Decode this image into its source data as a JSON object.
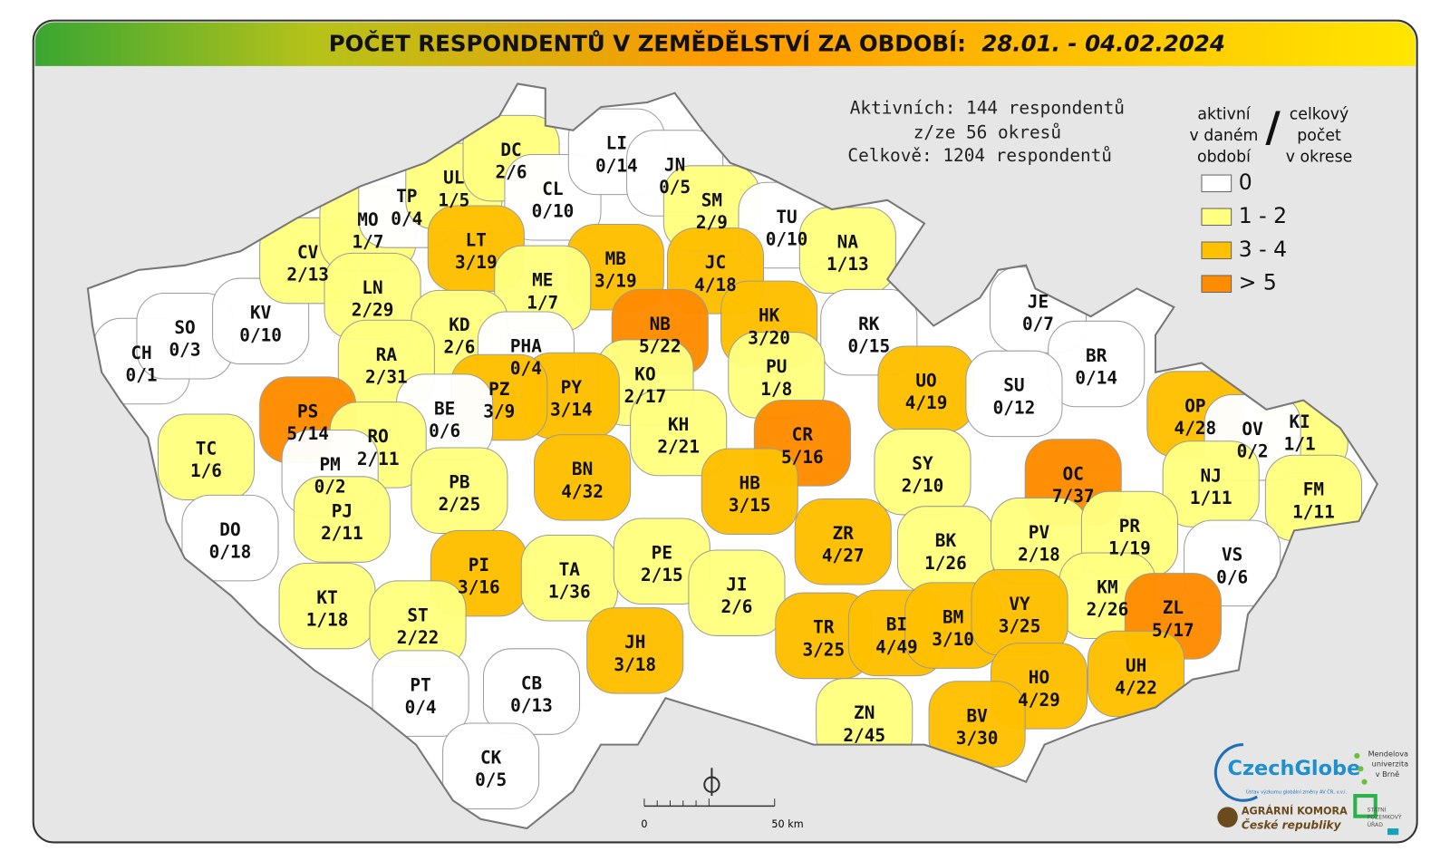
{
  "header": {
    "title": "POČET RESPONDENTŮ V ZEMĚDĚLSTVÍ ZA OBDOBÍ:",
    "period": "28.01. - 04.02.2024"
  },
  "summary": [
    "Aktivních: 144 respondentů",
    "z/ze 56 okresů",
    "Celkově: 1204 respondentů"
  ],
  "legend": {
    "left_heading": [
      "aktivní",
      "v daném",
      "období"
    ],
    "separator": "/",
    "right_heading": [
      "celkový",
      "počet",
      "v okrese"
    ],
    "classes": [
      {
        "label": "0",
        "color": "#ffffff"
      },
      {
        "label": "1 - 2",
        "color": "#ffff80"
      },
      {
        "label": "3 - 4",
        "color": "#ffc000"
      },
      {
        "label": "> 5",
        "color": "#ff8c00"
      }
    ]
  },
  "scale_bar": {
    "start": "0",
    "end": "50 km"
  },
  "logos": {
    "czechglobe": "CzechGlobe",
    "czechglobe_sub": "Ústav výzkumu globální změny AV ČR, v.v.i.",
    "mendelu": [
      "Mendelova",
      "univerzita",
      "v Brně"
    ],
    "agrarni": [
      "AGRÁRNÍ KOMORA",
      "České republiky"
    ],
    "spu": [
      "STÁTNÍ",
      "POZEMKOVÝ",
      "ÚŘAD"
    ]
  },
  "districts": [
    {
      "code": "CH",
      "count": "0/1",
      "color": "#ffffff"
    },
    {
      "code": "SO",
      "count": "0/3",
      "color": "#ffffff"
    },
    {
      "code": "KV",
      "count": "0/10",
      "color": "#ffffff"
    },
    {
      "code": "CV",
      "count": "2/13",
      "color": "#ffff80"
    },
    {
      "code": "MO",
      "count": "1/7",
      "color": "#ffff80"
    },
    {
      "code": "TP",
      "count": "0/4",
      "color": "#ffffff"
    },
    {
      "code": "UL",
      "count": "1/5",
      "color": "#ffff80"
    },
    {
      "code": "DC",
      "count": "2/6",
      "color": "#ffff80"
    },
    {
      "code": "CL",
      "count": "0/10",
      "color": "#ffffff"
    },
    {
      "code": "LI",
      "count": "0/14",
      "color": "#ffffff"
    },
    {
      "code": "JN",
      "count": "0/5",
      "color": "#ffffff"
    },
    {
      "code": "SM",
      "count": "2/9",
      "color": "#ffff80"
    },
    {
      "code": "TU",
      "count": "0/10",
      "color": "#ffffff"
    },
    {
      "code": "NA",
      "count": "1/13",
      "color": "#ffff80"
    },
    {
      "code": "LT",
      "count": "3/19",
      "color": "#ffc000"
    },
    {
      "code": "MB",
      "count": "3/19",
      "color": "#ffc000"
    },
    {
      "code": "JC",
      "count": "4/18",
      "color": "#ffc000"
    },
    {
      "code": "ME",
      "count": "1/7",
      "color": "#ffff80"
    },
    {
      "code": "LN",
      "count": "2/29",
      "color": "#ffff80"
    },
    {
      "code": "KD",
      "count": "2/6",
      "color": "#ffff80"
    },
    {
      "code": "RA",
      "count": "2/31",
      "color": "#ffff80"
    },
    {
      "code": "NB",
      "count": "5/22",
      "color": "#ff8c00"
    },
    {
      "code": "HK",
      "count": "3/20",
      "color": "#ffc000"
    },
    {
      "code": "RK",
      "count": "0/15",
      "color": "#ffffff"
    },
    {
      "code": "JE",
      "count": "0/7",
      "color": "#ffffff"
    },
    {
      "code": "PHA",
      "count": "0/4",
      "color": "#ffffff"
    },
    {
      "code": "PU",
      "count": "1/8",
      "color": "#ffff80"
    },
    {
      "code": "UO",
      "count": "4/19",
      "color": "#ffc000"
    },
    {
      "code": "BR",
      "count": "0/14",
      "color": "#ffffff"
    },
    {
      "code": "SU",
      "count": "0/12",
      "color": "#ffffff"
    },
    {
      "code": "KO",
      "count": "2/17",
      "color": "#ffff80"
    },
    {
      "code": "PY",
      "count": "3/14",
      "color": "#ffc000"
    },
    {
      "code": "PZ",
      "count": "3/9",
      "color": "#ffc000"
    },
    {
      "code": "PS",
      "count": "5/14",
      "color": "#ff8c00"
    },
    {
      "code": "BE",
      "count": "0/6",
      "color": "#ffffff"
    },
    {
      "code": "OP",
      "count": "4/28",
      "color": "#ffc000"
    },
    {
      "code": "KI",
      "count": "1/1",
      "color": "#ffff80"
    },
    {
      "code": "OV",
      "count": "0/2",
      "color": "#ffffff"
    },
    {
      "code": "CR",
      "count": "5/16",
      "color": "#ff8c00"
    },
    {
      "code": "KH",
      "count": "2/21",
      "color": "#ffff80"
    },
    {
      "code": "TC",
      "count": "1/6",
      "color": "#ffff80"
    },
    {
      "code": "RO",
      "count": "2/11",
      "color": "#ffff80"
    },
    {
      "code": "PM",
      "count": "0/2",
      "color": "#ffffff"
    },
    {
      "code": "BN",
      "count": "4/32",
      "color": "#ffc000"
    },
    {
      "code": "SY",
      "count": "2/10",
      "color": "#ffff80"
    },
    {
      "code": "OC",
      "count": "7/37",
      "color": "#ff8c00"
    },
    {
      "code": "HB",
      "count": "3/15",
      "color": "#ffc000"
    },
    {
      "code": "PB",
      "count": "2/25",
      "color": "#ffff80"
    },
    {
      "code": "NJ",
      "count": "1/11",
      "color": "#ffff80"
    },
    {
      "code": "FM",
      "count": "1/11",
      "color": "#ffff80"
    },
    {
      "code": "PJ",
      "count": "2/11",
      "color": "#ffff80"
    },
    {
      "code": "DO",
      "count": "0/18",
      "color": "#ffffff"
    },
    {
      "code": "ZR",
      "count": "4/27",
      "color": "#ffc000"
    },
    {
      "code": "BK",
      "count": "1/26",
      "color": "#ffff80"
    },
    {
      "code": "PV",
      "count": "2/18",
      "color": "#ffff80"
    },
    {
      "code": "PR",
      "count": "1/19",
      "color": "#ffff80"
    },
    {
      "code": "VS",
      "count": "0/6",
      "color": "#ffffff"
    },
    {
      "code": "PI",
      "count": "3/16",
      "color": "#ffc000"
    },
    {
      "code": "TA",
      "count": "1/36",
      "color": "#ffff80"
    },
    {
      "code": "PE",
      "count": "2/15",
      "color": "#ffff80"
    },
    {
      "code": "JI",
      "count": "2/6",
      "color": "#ffff80"
    },
    {
      "code": "KM",
      "count": "2/26",
      "color": "#ffff80"
    },
    {
      "code": "ZL",
      "count": "5/17",
      "color": "#ff8c00"
    },
    {
      "code": "KT",
      "count": "1/18",
      "color": "#ffff80"
    },
    {
      "code": "ST",
      "count": "2/22",
      "color": "#ffff80"
    },
    {
      "code": "JH",
      "count": "3/18",
      "color": "#ffc000"
    },
    {
      "code": "TR",
      "count": "3/25",
      "color": "#ffc000"
    },
    {
      "code": "BI",
      "count": "4/49",
      "color": "#ffc000"
    },
    {
      "code": "BM",
      "count": "3/10",
      "color": "#ffc000"
    },
    {
      "code": "VY",
      "count": "3/25",
      "color": "#ffc000"
    },
    {
      "code": "UH",
      "count": "4/22",
      "color": "#ffc000"
    },
    {
      "code": "HO",
      "count": "4/29",
      "color": "#ffc000"
    },
    {
      "code": "PT",
      "count": "0/4",
      "color": "#ffffff"
    },
    {
      "code": "CB",
      "count": "0/13",
      "color": "#ffffff"
    },
    {
      "code": "ZN",
      "count": "2/45",
      "color": "#ffff80"
    },
    {
      "code": "BV",
      "count": "3/30",
      "color": "#ffc000"
    },
    {
      "code": "CK",
      "count": "0/5",
      "color": "#ffffff"
    }
  ]
}
